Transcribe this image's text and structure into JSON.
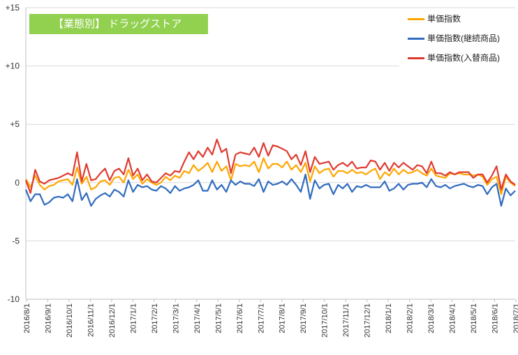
{
  "chart_data": {
    "type": "line",
    "title": "【業態別】 ドラッグストア",
    "xlabel": "",
    "ylabel": "",
    "ylim": [
      -10,
      15
    ],
    "y_ticks": [
      "+15",
      "+10",
      "+5",
      "0",
      "-5",
      "-10"
    ],
    "y_tick_values": [
      15,
      10,
      5,
      0,
      -5,
      -10
    ],
    "x_tick_labels": [
      "2016/8/1",
      "2016/9/1",
      "2016/10/1",
      "2016/11/1",
      "2016/12/1",
      "2017/1/1",
      "2017/2/1",
      "2017/3/1",
      "2017/4/1",
      "2017/5/1",
      "2017/6/1",
      "2017/7/1",
      "2017/8/1",
      "2017/9/1",
      "2017/10/1",
      "2017/11/1",
      "2017/12/1",
      "2018/1/1",
      "2018/2/1",
      "2018/3/1",
      "2018/4/1",
      "2018/5/1",
      "2018/6/1",
      "2018/7/1"
    ],
    "grid": "horizontal",
    "legend_position": "top-right",
    "series": [
      {
        "name": "単価指数",
        "color": "#ffa500",
        "values": [
          0.3,
          -0.4,
          0.6,
          -0.2,
          -0.6,
          -0.3,
          -0.2,
          0.1,
          0.2,
          0.3,
          -0.2,
          1.3,
          -0.1,
          0.5,
          -0.6,
          -0.4,
          0.1,
          0.2,
          -0.2,
          0.4,
          0.5,
          0.0,
          1.1,
          0.3,
          0.7,
          -0.1,
          0.3,
          0.0,
          -0.2,
          0.0,
          0.5,
          0.2,
          0.6,
          0.4,
          1.0,
          0.8,
          1.5,
          1.0,
          1.3,
          1.7,
          0.9,
          1.8,
          1.0,
          1.4,
          0.2,
          1.6,
          1.4,
          1.5,
          1.4,
          1.8,
          0.9,
          2.1,
          1.2,
          1.6,
          1.6,
          1.3,
          1.8,
          1.1,
          1.5,
          0.9,
          1.7,
          0.1,
          1.4,
          0.8,
          1.1,
          1.2,
          0.5,
          1.0,
          1.0,
          0.8,
          1.1,
          0.8,
          0.9,
          0.7,
          1.0,
          1.2,
          0.3,
          0.9,
          0.6,
          1.2,
          0.7,
          1.1,
          0.8,
          0.9,
          1.1,
          0.8,
          0.6,
          1.2,
          0.6,
          0.5,
          0.4,
          0.8,
          0.7,
          0.8,
          0.7,
          0.7,
          0.6,
          0.7,
          0.5,
          -0.2,
          0.3,
          0.5,
          -1.0,
          0.5,
          0.0,
          -0.3
        ]
      },
      {
        "name": "単価指数(継続商品)",
        "color": "#2f6bbf",
        "values": [
          -0.6,
          -1.6,
          -1.0,
          -1.0,
          -1.9,
          -1.7,
          -1.3,
          -1.2,
          -1.3,
          -1.0,
          -1.6,
          0.3,
          -1.5,
          -0.9,
          -2.0,
          -1.4,
          -1.1,
          -0.9,
          -1.2,
          -0.6,
          -0.8,
          -1.2,
          0.2,
          -0.8,
          -0.2,
          -0.4,
          -0.3,
          -0.6,
          -0.7,
          -0.3,
          -0.5,
          -0.9,
          -0.3,
          -0.7,
          -0.5,
          -0.4,
          -0.2,
          0.2,
          -0.7,
          -0.7,
          0.2,
          -0.6,
          -0.2,
          -0.8,
          0.2,
          -0.2,
          0.1,
          -0.1,
          -0.1,
          -0.3,
          0.3,
          -0.8,
          0.1,
          -0.2,
          -0.1,
          0.1,
          -0.2,
          0.3,
          -0.2,
          -0.8,
          0.7,
          -1.4,
          0.2,
          -0.5,
          -0.2,
          -0.1,
          -1.0,
          -0.2,
          -0.5,
          -0.1,
          -0.8,
          -0.3,
          -0.4,
          -0.2,
          -0.4,
          -0.4,
          -0.4,
          0.1,
          -0.7,
          -0.5,
          -0.1,
          -0.6,
          -0.2,
          -0.1,
          -0.1,
          0.0,
          -0.4,
          0.3,
          -0.3,
          -0.4,
          -0.2,
          -0.5,
          -0.3,
          -0.2,
          -0.1,
          -0.3,
          -0.4,
          -0.2,
          -0.3,
          -1.0,
          -0.4,
          -0.1,
          -2.0,
          -0.5,
          -1.1,
          -0.7
        ]
      },
      {
        "name": "単価指数(入替商品)",
        "color": "#e03a2f",
        "values": [
          0.2,
          -0.9,
          1.1,
          0.1,
          -0.1,
          0.2,
          0.3,
          0.4,
          0.6,
          0.8,
          0.6,
          2.6,
          0.1,
          1.6,
          0.2,
          0.3,
          0.8,
          1.2,
          0.2,
          1.0,
          1.2,
          0.7,
          2.1,
          0.6,
          1.2,
          0.2,
          0.7,
          0.1,
          0.0,
          0.4,
          0.8,
          0.6,
          1.0,
          0.9,
          1.8,
          2.6,
          2.0,
          2.7,
          2.2,
          3.0,
          2.4,
          3.7,
          2.6,
          2.9,
          0.8,
          2.4,
          2.6,
          2.5,
          2.4,
          3.0,
          2.2,
          3.4,
          2.3,
          3.2,
          3.1,
          2.9,
          2.7,
          2.0,
          2.4,
          1.5,
          2.7,
          0.9,
          2.2,
          1.6,
          1.7,
          1.8,
          1.1,
          1.5,
          1.7,
          1.4,
          1.8,
          1.2,
          1.3,
          1.3,
          1.9,
          1.8,
          1.1,
          1.7,
          1.0,
          1.7,
          1.3,
          1.7,
          1.4,
          1.1,
          1.5,
          1.4,
          0.8,
          1.8,
          0.8,
          0.8,
          0.6,
          0.9,
          0.7,
          0.9,
          0.9,
          0.9,
          0.4,
          0.7,
          0.7,
          0.0,
          0.6,
          1.4,
          -0.6,
          0.7,
          0.1,
          -0.2
        ]
      }
    ]
  }
}
